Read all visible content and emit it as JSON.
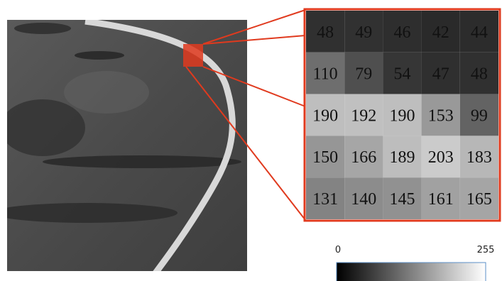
{
  "zoom_grid": {
    "rows": [
      [
        48,
        49,
        46,
        42,
        44
      ],
      [
        110,
        79,
        54,
        47,
        48
      ],
      [
        190,
        192,
        190,
        153,
        99
      ],
      [
        150,
        166,
        189,
        203,
        183
      ],
      [
        131,
        140,
        145,
        161,
        165
      ]
    ]
  },
  "colorbar": {
    "min": 0,
    "max": 255
  }
}
